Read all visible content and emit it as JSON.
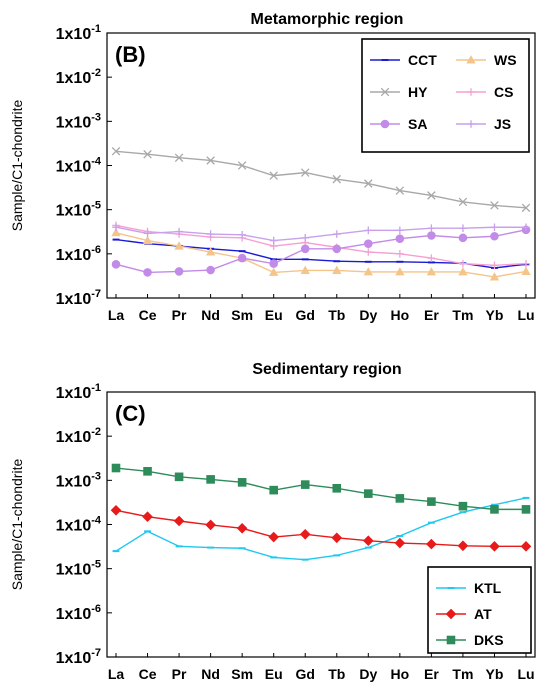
{
  "chart_data": [
    {
      "type": "line",
      "title": "Metamorphic region",
      "panel_label": "(B)",
      "ylabel": "Sample/C1-chondrite",
      "yscale": "log",
      "ylim": [
        1e-07,
        0.1
      ],
      "ytick_labels": [
        "1x10-7",
        "1x10-6",
        "1x10-5",
        "1x10-4",
        "1x10-3",
        "1x10-2",
        "1x10-1"
      ],
      "categories": [
        "La",
        "Ce",
        "Pr",
        "Nd",
        "Sm",
        "Eu",
        "Gd",
        "Tb",
        "Dy",
        "Ho",
        "Er",
        "Tm",
        "Yb",
        "Lu"
      ],
      "legend_position": "top-right",
      "series": [
        {
          "name": "CCT",
          "color": "#1a1ad6",
          "marker": "dash",
          "values": [
            2.1e-06,
            1.7e-06,
            1.5e-06,
            1.3e-06,
            1.15e-06,
            7.5e-07,
            7.5e-07,
            6.8e-07,
            6.6e-07,
            6.6e-07,
            6.4e-07,
            6.1e-07,
            4.8e-07,
            5.8e-07
          ]
        },
        {
          "name": "WS",
          "color": "#f5c48a",
          "marker": "triangle",
          "values": [
            3e-06,
            2e-06,
            1.5e-06,
            1.1e-06,
            8e-07,
            3.8e-07,
            4.2e-07,
            4.2e-07,
            3.9e-07,
            3.9e-07,
            3.9e-07,
            3.9e-07,
            3e-07,
            4e-07
          ]
        },
        {
          "name": "HY",
          "color": "#a8a8a8",
          "marker": "x",
          "values": [
            0.00021,
            0.00018,
            0.00015,
            0.00013,
            0.0001,
            5.9e-05,
            6.9e-05,
            4.9e-05,
            3.9e-05,
            2.7e-05,
            2.1e-05,
            1.5e-05,
            1.25e-05,
            1.1e-05
          ]
        },
        {
          "name": "CS",
          "color": "#f5a0d2",
          "marker": "plus",
          "values": [
            4.4e-06,
            3.2e-06,
            2.8e-06,
            2.4e-06,
            2.3e-06,
            1.5e-06,
            1.8e-06,
            1.4e-06,
            1.1e-06,
            1e-06,
            8e-07,
            6e-07,
            5.5e-07,
            6e-07
          ]
        },
        {
          "name": "SA",
          "color": "#c38be8",
          "marker": "circle",
          "values": [
            5.8e-07,
            3.8e-07,
            4e-07,
            4.3e-07,
            8e-07,
            6e-07,
            1.3e-06,
            1.3e-06,
            1.7e-06,
            2.2e-06,
            2.6e-06,
            2.3e-06,
            2.5e-06,
            3.5e-06
          ]
        },
        {
          "name": "JS",
          "color": "#c8a0ec",
          "marker": "plus",
          "values": [
            4e-06,
            2.9e-06,
            3.2e-06,
            2.8e-06,
            2.7e-06,
            2e-06,
            2.3e-06,
            2.8e-06,
            3.4e-06,
            3.4e-06,
            3.8e-06,
            3.8e-06,
            4e-06,
            4e-06
          ]
        }
      ]
    },
    {
      "type": "line",
      "title": "Sedimentary region",
      "panel_label": "(C)",
      "ylabel": "Sample/C1-chondrite",
      "yscale": "log",
      "ylim": [
        1e-07,
        0.1
      ],
      "ytick_labels": [
        "1x10-7",
        "1x10-6",
        "1x10-5",
        "1x10-4",
        "1x10-3",
        "1x10-2",
        "1x10-1"
      ],
      "categories": [
        "La",
        "Ce",
        "Pr",
        "Nd",
        "Sm",
        "Eu",
        "Gd",
        "Tb",
        "Dy",
        "Ho",
        "Er",
        "Tm",
        "Yb",
        "Lu"
      ],
      "legend_position": "bottom-right",
      "series": [
        {
          "name": "KTL",
          "color": "#1ec8f0",
          "marker": "dash",
          "values": [
            2.5e-05,
            7e-05,
            3.2e-05,
            3e-05,
            2.9e-05,
            1.8e-05,
            1.6e-05,
            2e-05,
            3e-05,
            5.5e-05,
            0.00011,
            0.00019,
            0.00028,
            0.0004
          ]
        },
        {
          "name": "AT",
          "color": "#e81a1a",
          "marker": "diamond",
          "values": [
            0.00021,
            0.00015,
            0.00012,
            9.8e-05,
            8.2e-05,
            5.2e-05,
            6e-05,
            5e-05,
            4.3e-05,
            3.8e-05,
            3.6e-05,
            3.3e-05,
            3.2e-05,
            3.2e-05
          ]
        },
        {
          "name": "DKS",
          "color": "#2e8b5a",
          "marker": "square",
          "values": [
            0.0019,
            0.0016,
            0.0012,
            0.00105,
            0.0009,
            0.0006,
            0.0008,
            0.00066,
            0.0005,
            0.00039,
            0.00033,
            0.00026,
            0.00022,
            0.00022
          ]
        }
      ]
    }
  ]
}
